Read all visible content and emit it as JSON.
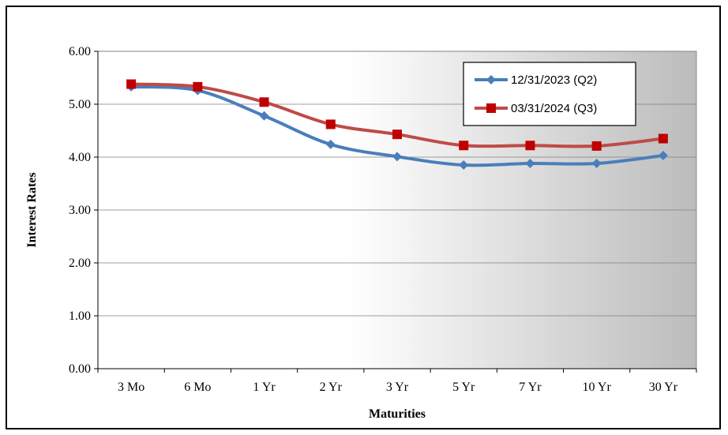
{
  "chart_data": {
    "type": "line",
    "title": "",
    "xlabel": "Maturities",
    "ylabel": "Interest Rates",
    "categories": [
      "3 Mo",
      "6 Mo",
      "1 Yr",
      "2 Yr",
      "3 Yr",
      "5 Yr",
      "7 Yr",
      "10 Yr",
      "30 Yr"
    ],
    "ylim": [
      0,
      6
    ],
    "yticks": [
      "0.00",
      "1.00",
      "2.00",
      "3.00",
      "4.00",
      "5.00",
      "6.00"
    ],
    "grid": "horizontal",
    "legend": "top-right",
    "series": [
      {
        "name": "12/31/2023 (Q2)",
        "color": "#4a7ebb",
        "marker": "diamond",
        "values": [
          5.33,
          5.26,
          4.78,
          4.24,
          4.01,
          3.85,
          3.88,
          3.88,
          4.03
        ]
      },
      {
        "name": "03/31/2024 (Q3)",
        "color": "#be4b48",
        "marker": "square",
        "values": [
          5.38,
          5.33,
          5.04,
          4.62,
          4.43,
          4.22,
          4.22,
          4.21,
          4.35
        ]
      }
    ]
  }
}
